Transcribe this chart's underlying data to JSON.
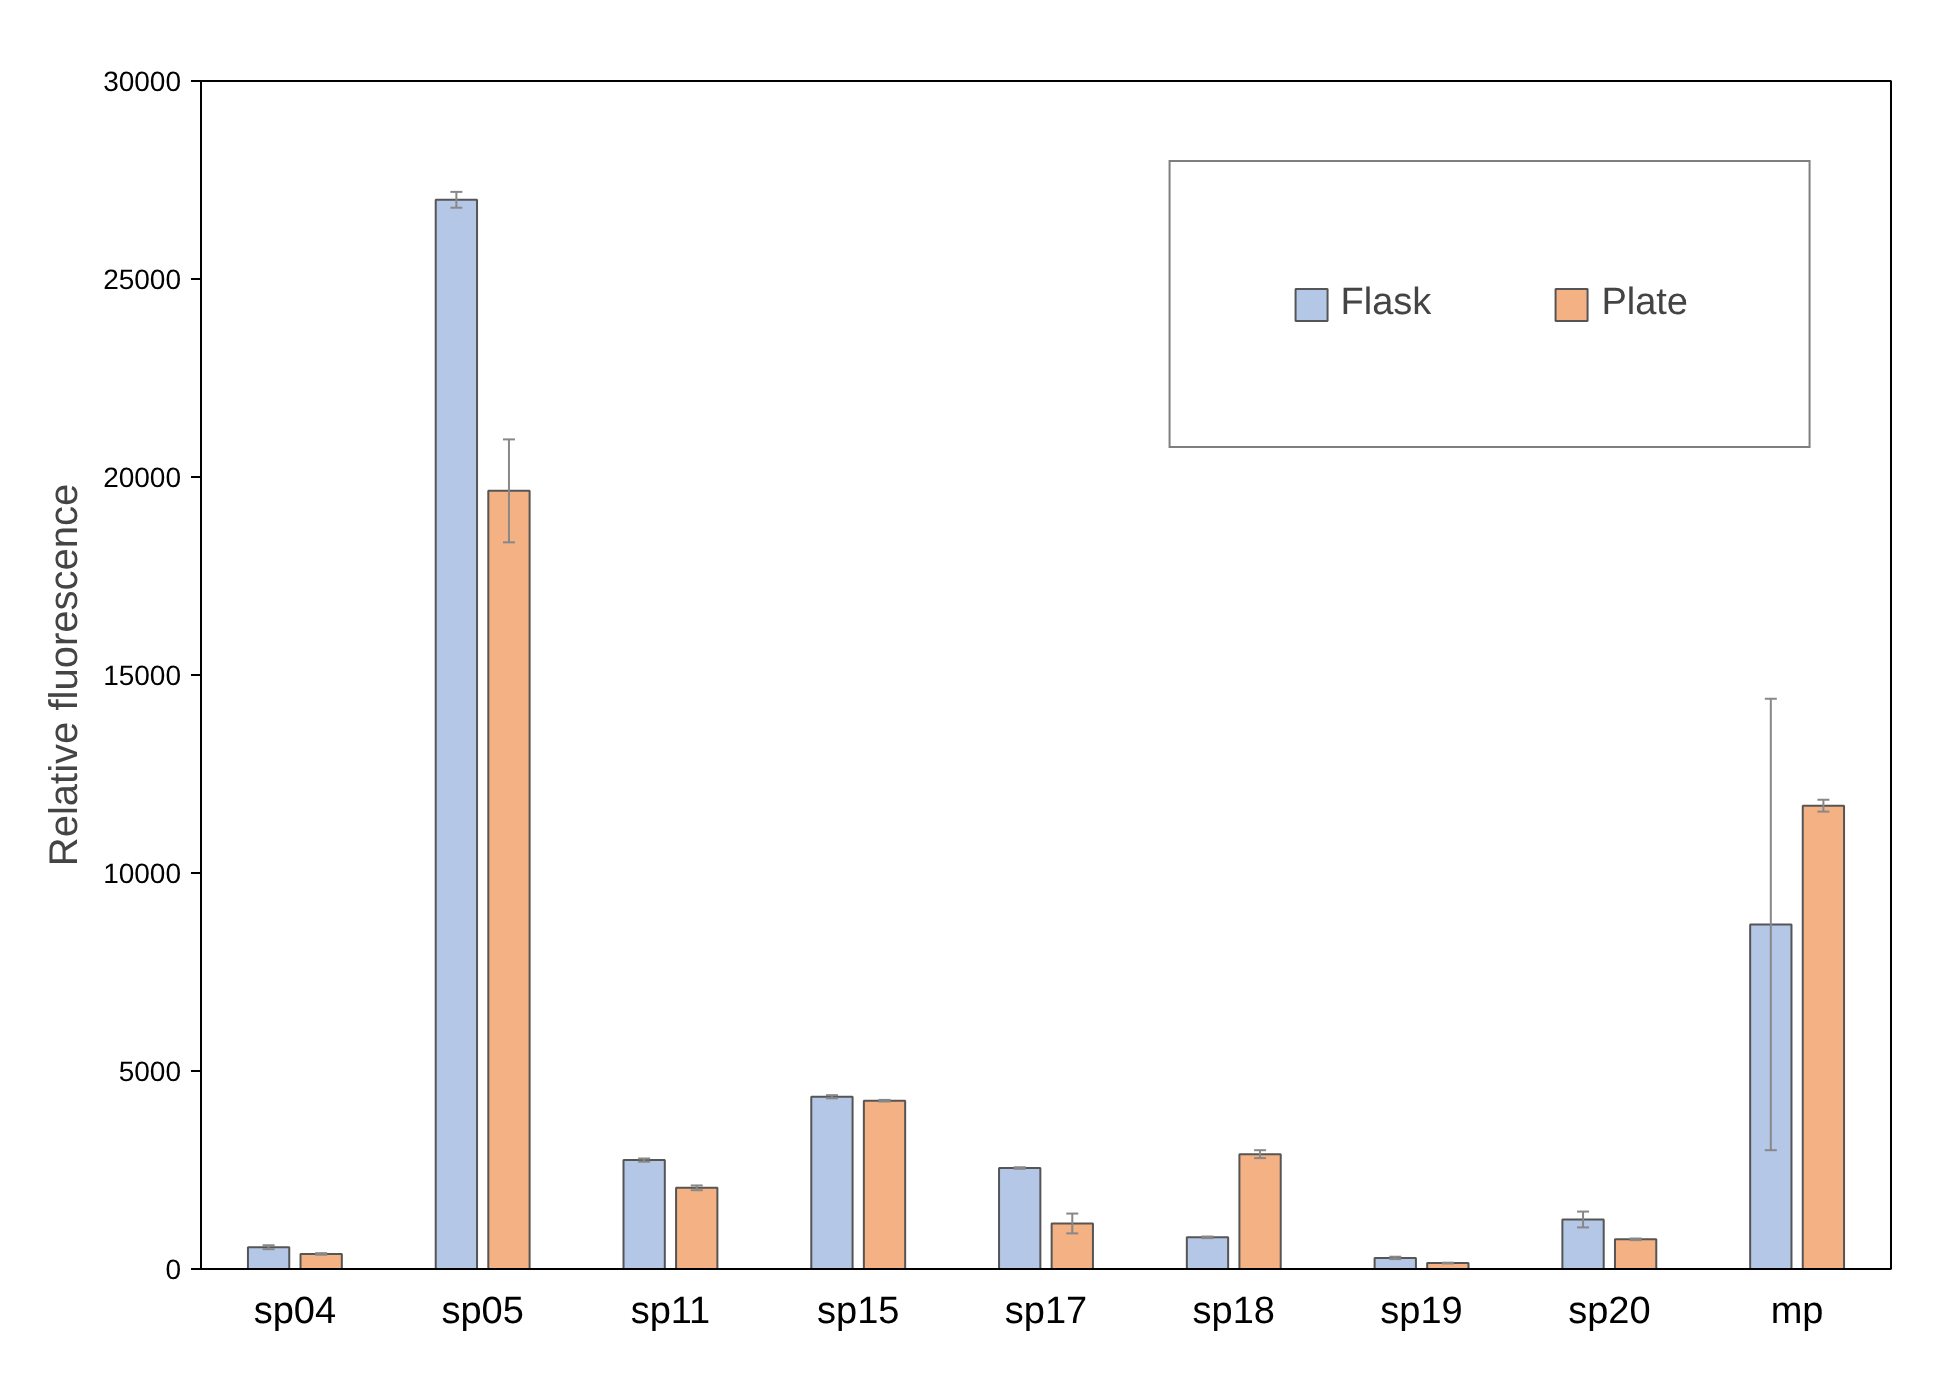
{
  "chart_data": {
    "type": "bar",
    "ylabel": "Relative fluorescence",
    "categories": [
      "sp04",
      "sp05",
      "sp11",
      "sp15",
      "sp17",
      "sp18",
      "sp19",
      "sp20",
      "mp"
    ],
    "series": [
      {
        "name": "Flask",
        "color": "#b4c7e7",
        "values": [
          550,
          27000,
          2750,
          4350,
          2550,
          800,
          280,
          1250,
          8700
        ],
        "errors": [
          50,
          200,
          40,
          40,
          20,
          20,
          30,
          200,
          5700
        ]
      },
      {
        "name": "Plate",
        "color": "#f4b183",
        "values": [
          380,
          19650,
          2050,
          4250,
          1150,
          2900,
          150,
          750,
          11700
        ],
        "errors": [
          20,
          1300,
          60,
          20,
          250,
          100,
          10,
          20,
          150
        ]
      }
    ],
    "ylim": [
      0,
      30000
    ],
    "yticks": [
      0,
      5000,
      10000,
      15000,
      20000,
      25000,
      30000
    ],
    "grid": false,
    "legend": "top right"
  }
}
